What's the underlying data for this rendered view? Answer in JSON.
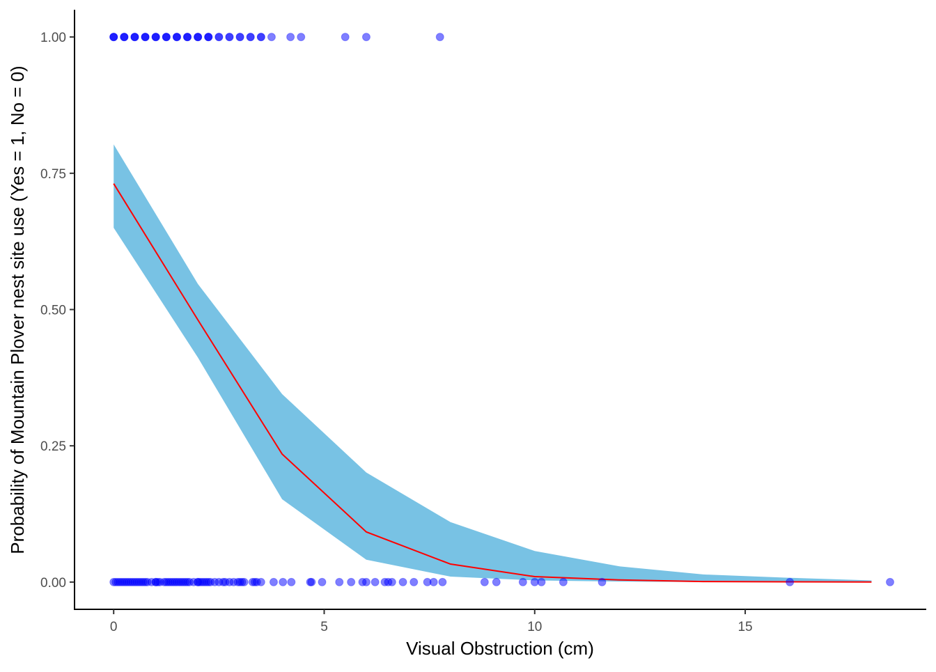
{
  "chart_data": {
    "type": "scatter",
    "xlabel": "Visual Obstruction (cm)",
    "ylabel": "Probability of Mountain Plover nest site use (Yes = 1, No = 0)",
    "xlim": [
      -0.93,
      19.3
    ],
    "ylim": [
      -0.05,
      1.05
    ],
    "xticks": [
      0,
      5,
      10,
      15
    ],
    "xtick_labels": [
      "0",
      "5",
      "10",
      "15"
    ],
    "yticks": [
      0,
      0.25,
      0.5,
      0.75,
      1
    ],
    "ytick_labels": [
      "0.00",
      "0.25",
      "0.50",
      "0.75",
      "1.00"
    ],
    "grid": false,
    "colors": {
      "points": "#0000ff",
      "band": "#78c2e4",
      "line": "#ff0000"
    },
    "points_used": {
      "y": 1,
      "x": [
        0,
        0,
        0,
        0.25,
        0.25,
        0.25,
        0.5,
        0.5,
        0.5,
        0.75,
        0.75,
        0.75,
        1.0,
        1.0,
        1.0,
        1.25,
        1.25,
        1.25,
        1.5,
        1.5,
        1.5,
        1.75,
        1.75,
        1.75,
        2.0,
        2.0,
        2.0,
        2.25,
        2.25,
        2.25,
        2.5,
        2.5,
        2.75,
        2.75,
        3.0,
        3.0,
        3.25,
        3.25,
        3.5,
        3.5,
        3.75,
        4.2,
        4.45,
        5.5,
        6.0,
        7.75
      ]
    },
    "points_unused": {
      "y": 0,
      "x": [
        0,
        0.05,
        0.1,
        0.15,
        0.2,
        0.25,
        0.3,
        0.35,
        0.4,
        0.45,
        0.5,
        0.55,
        0.6,
        0.65,
        0.7,
        0.75,
        0.8,
        0.9,
        1.0,
        1.0,
        1.05,
        1.1,
        1.2,
        1.25,
        1.3,
        1.35,
        1.4,
        1.45,
        1.5,
        1.55,
        1.6,
        1.65,
        1.7,
        1.75,
        1.8,
        1.9,
        2.0,
        2.0,
        2.05,
        2.1,
        2.15,
        2.2,
        2.25,
        2.3,
        2.4,
        2.5,
        2.6,
        2.65,
        2.75,
        2.85,
        2.95,
        3.0,
        3.05,
        3.1,
        3.3,
        3.35,
        3.4,
        3.5,
        3.8,
        4.02,
        4.22,
        4.67,
        4.7,
        4.95,
        5.36,
        5.64,
        5.91,
        6.0,
        6.21,
        6.44,
        6.52,
        6.61,
        6.87,
        7.13,
        7.45,
        7.6,
        7.81,
        8.81,
        9.09,
        9.72,
        10.0,
        10.16,
        10.68,
        11.6,
        16.06,
        18.44
      ]
    },
    "fit": {
      "x": [
        0,
        2,
        4,
        6,
        8,
        10,
        12,
        14,
        16,
        18
      ],
      "y": [
        0.731,
        0.481,
        0.235,
        0.092,
        0.033,
        0.01,
        0.004,
        0.001,
        0.0005,
        0.0002
      ],
      "upper": [
        0.803,
        0.547,
        0.345,
        0.201,
        0.11,
        0.057,
        0.029,
        0.014,
        0.008,
        0.003
      ],
      "lower": [
        0.65,
        0.412,
        0.152,
        0.041,
        0.01,
        0.003,
        0.001,
        0.0,
        0.0,
        0.0
      ]
    }
  }
}
